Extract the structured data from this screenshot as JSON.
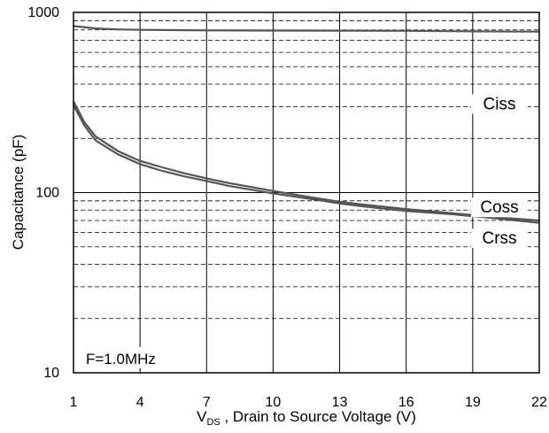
{
  "chart_data": {
    "type": "line",
    "title": "",
    "xlabel_main": "V",
    "xlabel_sub": "DS",
    "xlabel_rest": " , Drain to Source Voltage (V)",
    "ylabel": "Capacitance (pF)",
    "xlim": [
      1,
      22
    ],
    "ylim": [
      10,
      1000
    ],
    "yscale": "log",
    "x_ticks": [
      1,
      4,
      7,
      10,
      13,
      16,
      19,
      22
    ],
    "y_tick_labels": [
      "10",
      "100",
      "1000"
    ],
    "grid": true,
    "annotation": "F=1.0MHz",
    "series": [
      {
        "name": "Ciss",
        "x": [
          1,
          2,
          3,
          4,
          5,
          7,
          10,
          13,
          16,
          19,
          22
        ],
        "y": [
          840,
          815,
          805,
          800,
          798,
          795,
          793,
          792,
          790,
          785,
          782
        ]
      },
      {
        "name": "Coss",
        "x": [
          1,
          1.5,
          2,
          3,
          4,
          5,
          6,
          7,
          8,
          10,
          12,
          13,
          14,
          16,
          18,
          19,
          20,
          22
        ],
        "y": [
          320,
          245,
          205,
          170,
          150,
          138,
          128,
          120,
          113,
          102,
          93,
          89,
          86,
          81,
          77,
          75,
          73,
          70
        ]
      },
      {
        "name": "Crss",
        "x": [
          1,
          1.5,
          2,
          3,
          4,
          5,
          6,
          7,
          8,
          10,
          12,
          13,
          14,
          16,
          18,
          19,
          20,
          22
        ],
        "y": [
          305,
          235,
          195,
          163,
          144,
          132,
          123,
          116,
          109,
          99,
          91,
          87,
          84,
          79,
          76,
          74,
          72,
          68
        ]
      }
    ]
  },
  "colors": {
    "line": "#555555",
    "grid": "#000000",
    "background": "#ffffff"
  }
}
